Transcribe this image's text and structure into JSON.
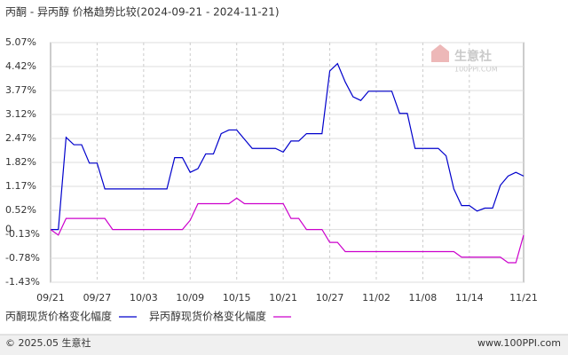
{
  "chart_data": {
    "type": "line",
    "title": "丙酮 - 异丙醇 价格趋势比较(2024-09-21 - 2024-11-21)",
    "watermark": [
      "生意社",
      "100PPI.COM"
    ],
    "footer_left": "© 2025.05 生意社",
    "footer_right": "www.100PPI.com",
    "categories": [
      "09/21",
      null,
      null,
      null,
      null,
      null,
      "09/27",
      null,
      null,
      null,
      null,
      null,
      "10/03",
      null,
      null,
      null,
      null,
      null,
      "10/09",
      null,
      null,
      null,
      null,
      null,
      "10/15",
      null,
      null,
      null,
      null,
      null,
      "10/21",
      null,
      null,
      null,
      null,
      null,
      "10/27",
      null,
      null,
      null,
      null,
      null,
      "11/02",
      null,
      null,
      null,
      null,
      null,
      "11/08",
      null,
      null,
      null,
      null,
      null,
      "11/14",
      null,
      null,
      null,
      null,
      null,
      null,
      "11/21"
    ],
    "series": [
      {
        "name": "丙酮现货价格变化幅度",
        "color": "#0000cc",
        "values": [
          0,
          0,
          2.5,
          2.3,
          2.3,
          1.8,
          1.8,
          1.1,
          1.1,
          1.1,
          1.1,
          1.1,
          1.1,
          1.1,
          1.1,
          1.1,
          1.95,
          1.95,
          1.55,
          1.65,
          2.05,
          2.05,
          2.6,
          2.7,
          2.7,
          2.45,
          2.2,
          2.2,
          2.2,
          2.2,
          2.1,
          2.4,
          2.4,
          2.6,
          2.6,
          2.6,
          4.3,
          4.5,
          4.0,
          3.6,
          3.5,
          3.75,
          3.75,
          3.75,
          3.75,
          3.15,
          3.15,
          2.2,
          2.2,
          2.2,
          2.2,
          2.0,
          1.1,
          0.65,
          0.65,
          0.5,
          0.58,
          0.58,
          1.2,
          1.45,
          1.55,
          1.45
        ]
      },
      {
        "name": "异丙醇现货价格变化幅度",
        "color": "#cc00cc",
        "values": [
          0,
          -0.15,
          0.3,
          0.3,
          0.3,
          0.3,
          0.3,
          0.3,
          0,
          0,
          0,
          0,
          0,
          0,
          0,
          0,
          0,
          0,
          0.25,
          0.7,
          0.7,
          0.7,
          0.7,
          0.7,
          0.85,
          0.7,
          0.7,
          0.7,
          0.7,
          0.7,
          0.7,
          0.3,
          0.3,
          0,
          0,
          0,
          -0.35,
          -0.35,
          -0.6,
          -0.6,
          -0.6,
          -0.6,
          -0.6,
          -0.6,
          -0.6,
          -0.6,
          -0.6,
          -0.6,
          -0.6,
          -0.6,
          -0.6,
          -0.6,
          -0.6,
          -0.75,
          -0.75,
          -0.75,
          -0.75,
          -0.75,
          -0.75,
          -0.9,
          -0.9,
          -0.15
        ]
      }
    ],
    "ylim": [
      -1.43,
      5.07
    ],
    "yticks": [
      {
        "value": 5.07,
        "label": "5.07%"
      },
      {
        "value": 4.42,
        "label": "4.42%"
      },
      {
        "value": 3.77,
        "label": "3.77%"
      },
      {
        "value": 3.12,
        "label": "3.12%"
      },
      {
        "value": 2.47,
        "label": "2.47%"
      },
      {
        "value": 1.82,
        "label": "1.82%"
      },
      {
        "value": 1.17,
        "label": "1.17%"
      },
      {
        "value": 0.52,
        "label": "0.52%"
      },
      0,
      {
        "value": -0.13,
        "label": "-0.13%"
      },
      {
        "value": -0.78,
        "label": "-0.78%"
      },
      {
        "value": -1.43,
        "label": "-1.43%"
      }
    ],
    "grid": true
  }
}
